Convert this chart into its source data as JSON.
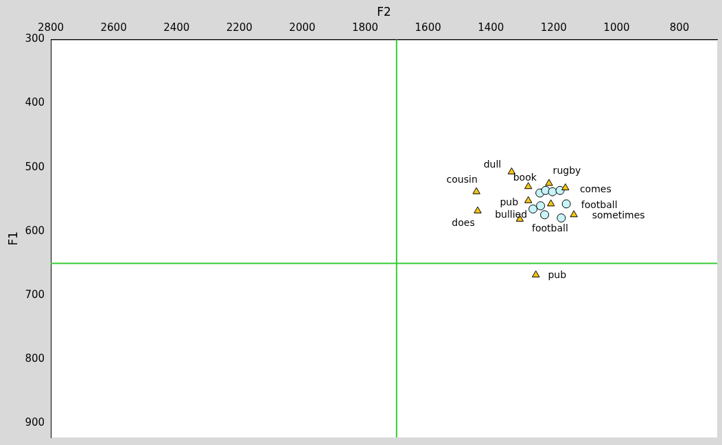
{
  "chart_data": {
    "type": "scatter",
    "xlabel": "F2",
    "ylabel": "F1",
    "xlim": [
      2800,
      680
    ],
    "xticks": [
      2800,
      2600,
      2400,
      2200,
      2000,
      1800,
      1600,
      1400,
      1200,
      1000,
      800
    ],
    "ylim": [
      922,
      300
    ],
    "yticks": [
      300,
      400,
      500,
      600,
      700,
      800,
      900
    ],
    "grid": false,
    "legend": false,
    "series": [
      {
        "color": "#f5c518",
        "marker": "triangle",
        "x": [
          1334,
          1215,
          1281,
          1163,
          1446,
          1281,
          1209,
          1442,
          1136,
          1308,
          1257
        ],
        "values": [
          507,
          525,
          530,
          532,
          538,
          552,
          557,
          568,
          574,
          581,
          668
        ]
      },
      {
        "color": "#c8f4f8",
        "marker": "circle",
        "x": [
          1244,
          1226,
          1204,
          1180,
          1160,
          1266,
          1242,
          1229,
          1176
        ],
        "values": [
          540,
          536,
          538,
          536,
          557,
          565,
          560,
          574,
          579
        ]
      }
    ],
    "ref_lines": [
      {
        "axis": "x",
        "value": 1700,
        "color": "#33cc33"
      },
      {
        "axis": "y",
        "value": 650,
        "color": "#33cc33"
      }
    ],
    "annotations": [
      {
        "text": "dull",
        "x": 1334,
        "y": 507
      },
      {
        "text": "rugby",
        "x": 1215,
        "y": 525
      },
      {
        "text": "book",
        "x": 1281,
        "y": 530
      },
      {
        "text": "comes",
        "x": 1163,
        "y": 532
      },
      {
        "text": "cousin",
        "x": 1446,
        "y": 538
      },
      {
        "text": "pub",
        "x": 1281,
        "y": 552
      },
      {
        "text": "football",
        "x": 1160,
        "y": 557
      },
      {
        "text": "does",
        "x": 1442,
        "y": 568
      },
      {
        "text": "sometimes",
        "x": 1136,
        "y": 574
      },
      {
        "text": "bullied",
        "x": 1266,
        "y": 565
      },
      {
        "text": "football",
        "x": 1308,
        "y": 581
      },
      {
        "text": "pub",
        "x": 1257,
        "y": 668
      }
    ]
  }
}
